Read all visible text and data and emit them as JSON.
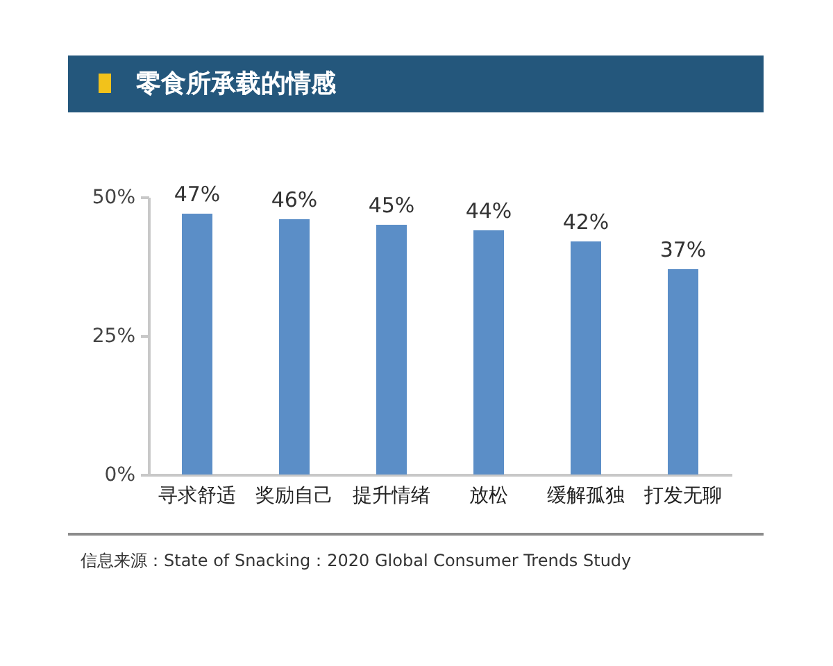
{
  "chart_data": {
    "type": "bar",
    "title": "零食所承载的情感",
    "categories": [
      "寻求舒适",
      "奖励自己",
      "提升情绪",
      "放松",
      "缓解孤独",
      "打发无聊"
    ],
    "values": [
      47,
      46,
      45,
      44,
      42,
      37
    ],
    "value_labels": [
      "47%",
      "46%",
      "45%",
      "44%",
      "42%",
      "37%"
    ],
    "color": "#5b8ec7",
    "ylim": [
      0,
      50
    ],
    "yticks": [
      {
        "value": 0,
        "label": "0%"
      },
      {
        "value": 25,
        "label": "25%"
      },
      {
        "value": 50,
        "label": "50%"
      }
    ],
    "grid": false,
    "annotations": [
      "信息来源：State of Snacking：2020 Global Consumer Trends Study"
    ]
  }
}
